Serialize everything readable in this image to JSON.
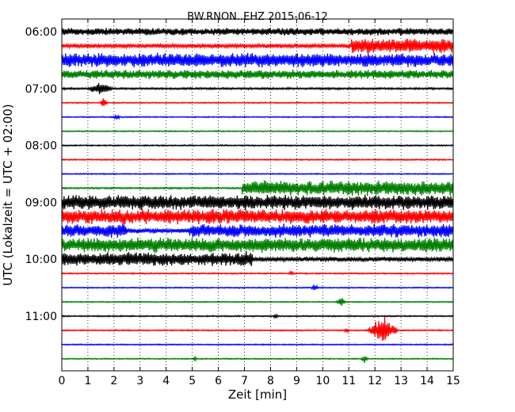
{
  "chart_data": {
    "type": "line",
    "title": "BW.RNON..EHZ 2015-06-12",
    "xlabel": "Zeit  [min]",
    "ylabel": "UTC (Lokalzeit = UTC + 02:00)",
    "xlim": [
      0,
      15
    ],
    "x_ticks": [
      "0",
      "1",
      "2",
      "3",
      "4",
      "5",
      "6",
      "7",
      "8",
      "9",
      "10",
      "11",
      "12",
      "13",
      "14",
      "15"
    ],
    "y_ticks": [
      "06:00",
      "07:00",
      "08:00",
      "09:00",
      "10:00",
      "11:00"
    ],
    "vertical_grid": "dotted",
    "trace_color_cycle": [
      "#000000",
      "#ff0000",
      "#0000ff",
      "#008000"
    ],
    "trace_interval_min": 15,
    "traces": [
      {
        "start": "06:00",
        "color": "black",
        "level": 0.45,
        "events": [
          {
            "x": 11.5,
            "a": 0.5,
            "w": 0.8
          }
        ]
      },
      {
        "start": "06:15",
        "color": "red",
        "level": 0.25,
        "burst": {
          "from": 11.1,
          "to": 15,
          "a": 0.9
        }
      },
      {
        "start": "06:30",
        "color": "blue",
        "level": 0.85
      },
      {
        "start": "06:45",
        "color": "green",
        "level": 0.55,
        "events": [
          {
            "x": 6.5,
            "a": 0.2,
            "w": 1.5
          },
          {
            "x": 12.6,
            "a": 0.2,
            "w": 1.5
          }
        ]
      },
      {
        "start": "07:00",
        "color": "black",
        "level": 0.12,
        "events": [
          {
            "x": 1.5,
            "a": 0.9,
            "w": 0.5
          }
        ]
      },
      {
        "start": "07:15",
        "color": "red",
        "level": 0.07,
        "events": [
          {
            "x": 1.6,
            "a": 0.7,
            "w": 0.15
          }
        ]
      },
      {
        "start": "07:30",
        "color": "blue",
        "level": 0.07,
        "events": [
          {
            "x": 2.1,
            "a": 0.35,
            "w": 0.15
          }
        ]
      },
      {
        "start": "07:45",
        "color": "green",
        "level": 0.07
      },
      {
        "start": "08:00",
        "color": "black",
        "level": 0.08
      },
      {
        "start": "08:15",
        "color": "red",
        "level": 0.08
      },
      {
        "start": "08:30",
        "color": "blue",
        "level": 0.07
      },
      {
        "start": "08:45",
        "color": "green",
        "level": 0.1,
        "burst": {
          "from": 6.9,
          "to": 15,
          "a": 0.9
        }
      },
      {
        "start": "09:00",
        "color": "black",
        "level": 0.9
      },
      {
        "start": "09:15",
        "color": "red",
        "level": 0.9
      },
      {
        "start": "09:30",
        "color": "blue",
        "level": 0.8,
        "segments": [
          {
            "from": 2.3,
            "to": 4.9,
            "a": 0.3
          }
        ],
        "events": [
          {
            "x": 2.2,
            "a": 1.0,
            "w": 0.3
          }
        ]
      },
      {
        "start": "09:45",
        "color": "green",
        "level": 0.9
      },
      {
        "start": "10:00",
        "color": "black",
        "level": 0.85,
        "segments": [
          {
            "from": 7.0,
            "to": 15,
            "a": 0.3
          }
        ],
        "events": [
          {
            "x": 7.0,
            "a": 1.0,
            "w": 0.3
          }
        ]
      },
      {
        "start": "10:15",
        "color": "red",
        "level": 0.08,
        "events": [
          {
            "x": 8.8,
            "a": 0.4,
            "w": 0.1
          }
        ]
      },
      {
        "start": "10:30",
        "color": "blue",
        "level": 0.07,
        "events": [
          {
            "x": 9.7,
            "a": 0.5,
            "w": 0.15
          }
        ]
      },
      {
        "start": "10:45",
        "color": "green",
        "level": 0.07,
        "events": [
          {
            "x": 10.7,
            "a": 0.7,
            "w": 0.2
          }
        ]
      },
      {
        "start": "11:00",
        "color": "black",
        "level": 0.08,
        "events": [
          {
            "x": 8.2,
            "a": 0.4,
            "w": 0.1
          }
        ]
      },
      {
        "start": "11:15",
        "color": "red",
        "level": 0.08,
        "events": [
          {
            "x": 12.3,
            "a": 1.8,
            "w": 0.6
          },
          {
            "x": 10.9,
            "a": 0.4,
            "w": 0.1
          }
        ]
      },
      {
        "start": "11:30",
        "color": "blue",
        "level": 0.07
      },
      {
        "start": "11:45",
        "color": "green",
        "level": 0.07,
        "events": [
          {
            "x": 5.1,
            "a": 0.3,
            "w": 0.1
          },
          {
            "x": 11.6,
            "a": 0.6,
            "w": 0.15
          }
        ]
      }
    ]
  }
}
